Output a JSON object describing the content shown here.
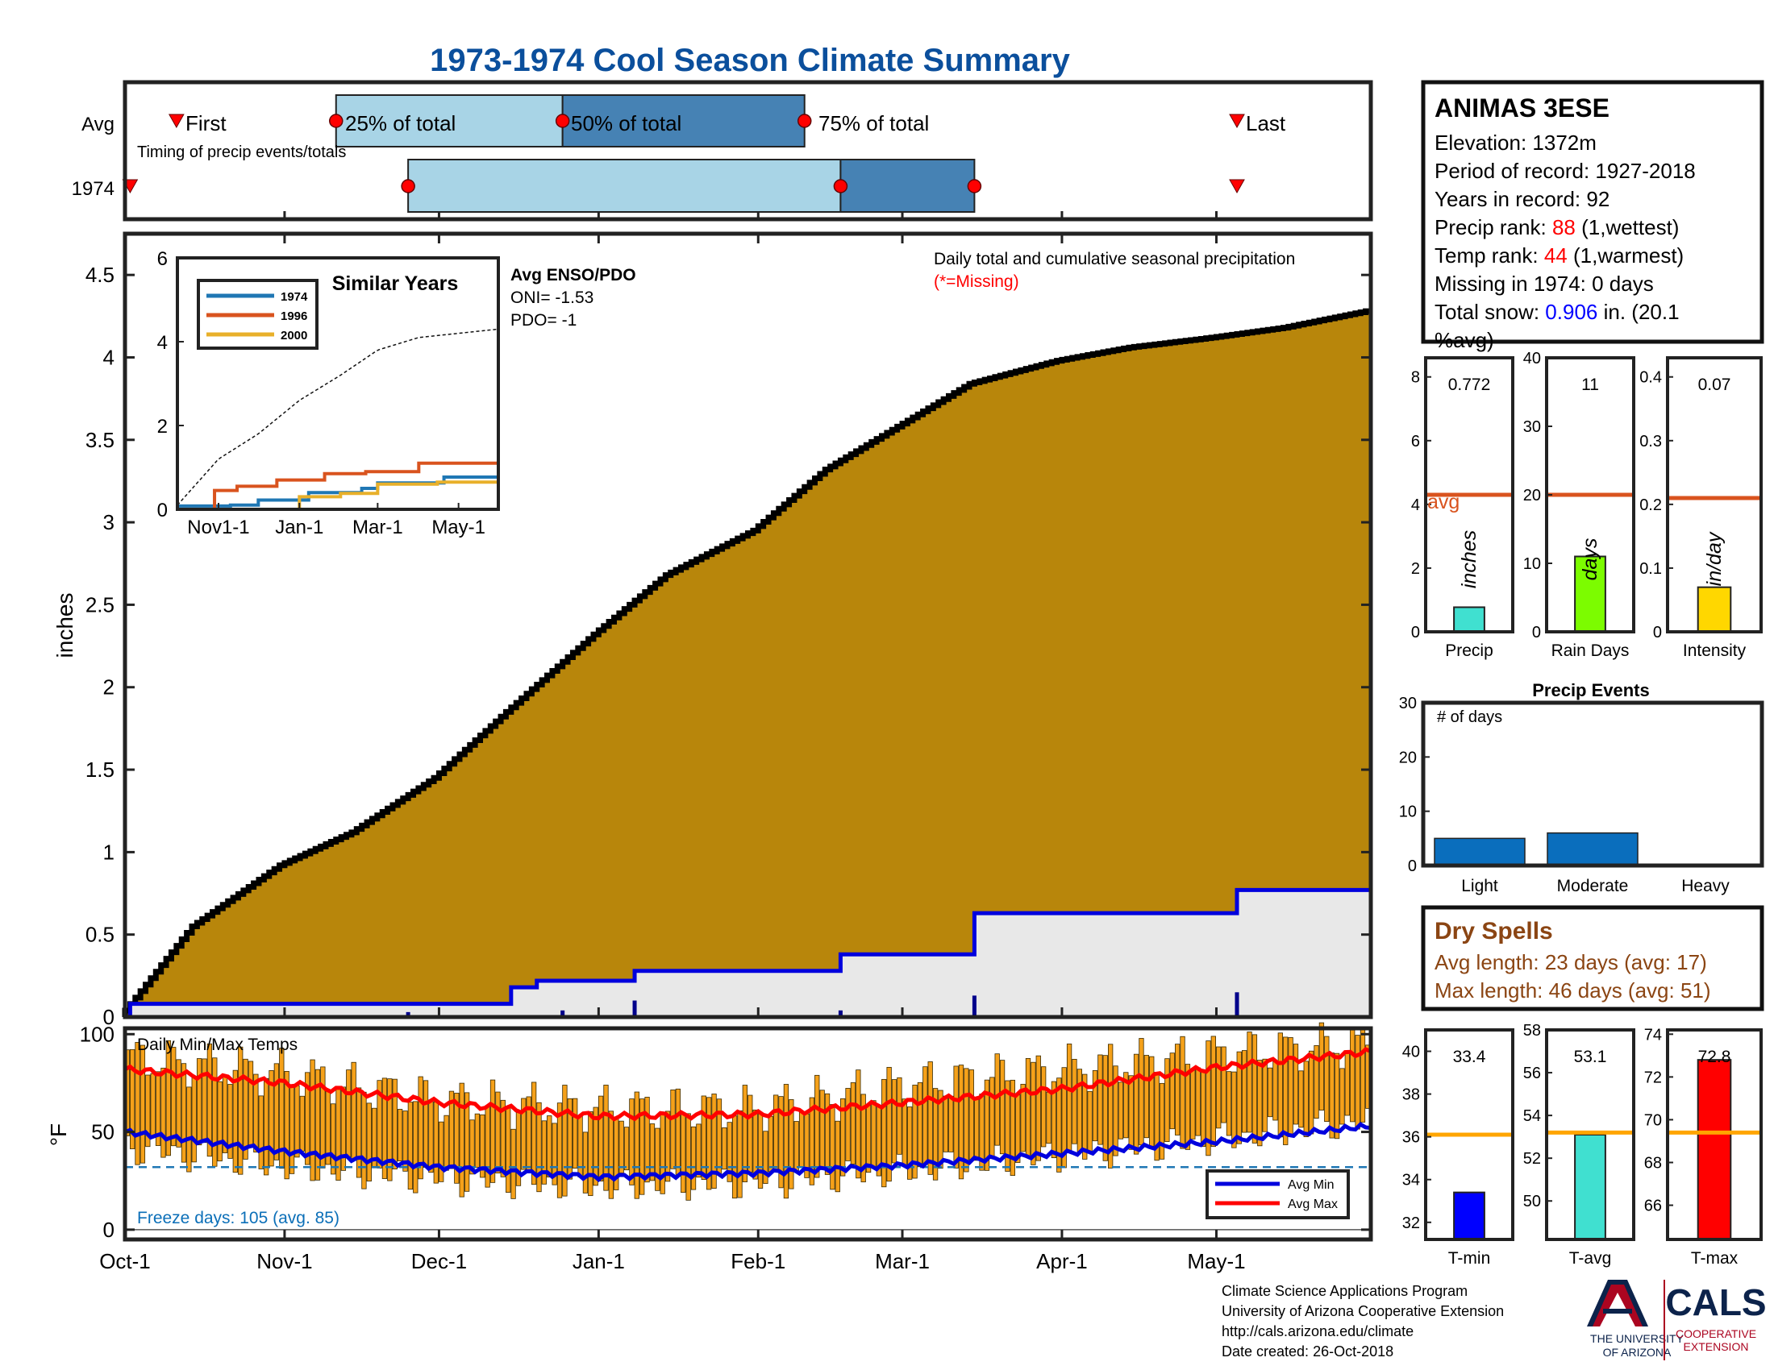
{
  "title": "1973-1974 Cool Season Climate Summary",
  "colors": {
    "title": "#0b4f9c",
    "cum_fill": "#b8860b",
    "cum_line": "#000000",
    "gray_fill": "#e8e8e8",
    "blue_line": "#0000dd",
    "light_blue": "#a8d4e6",
    "mid_blue": "#4682b4",
    "red": "#ff0000",
    "orange_avg": "#d9531e",
    "temp_bar": "#f5a11a",
    "freeze_text": "#0b6fb8",
    "dry_title": "#8b4513",
    "uofa_navy": "#0c234b",
    "uofa_red": "#ab0520"
  },
  "timing": {
    "row_labels": [
      "Avg",
      "1974"
    ],
    "subtitle": "Timing of precip events/totals",
    "markers": [
      "First",
      "25% of total",
      "50% of total",
      "75% of total",
      "Last"
    ]
  },
  "main": {
    "ylabel": "inches",
    "ticks": [
      "0",
      "0.5",
      "1",
      "1.5",
      "2",
      "2.5",
      "3",
      "3.5",
      "4",
      "4.5"
    ],
    "note1": "Daily total and cumulative seasonal precipitation",
    "note2": "(*=Missing)"
  },
  "month_ticks": [
    "Oct-1",
    "Nov-1",
    "Dec-1",
    "Jan-1",
    "Feb-1",
    "Mar-1",
    "Apr-1",
    "May-1"
  ],
  "inset": {
    "title": "Similar Years",
    "legend": [
      "1974",
      "1996",
      "2000"
    ],
    "legend_colors": [
      "#1f77b4",
      "#d9531e",
      "#e8b02a"
    ],
    "yticks": [
      "0",
      "2",
      "4",
      "6"
    ],
    "xticks": [
      "Nov1-1",
      "Jan-1",
      "Mar-1",
      "May-1"
    ]
  },
  "enso": {
    "title": "Avg ENSO/PDO",
    "oni": "ONI= -1.53",
    "pdo": "PDO= -1"
  },
  "temps": {
    "label": "Daily Min/Max Temps",
    "ylabel": "°F",
    "yticks": [
      "100",
      "50",
      "0"
    ],
    "freeze": "Freeze days: 105 (avg. 85)",
    "legend": [
      "Avg Min",
      "Avg Max"
    ]
  },
  "station": {
    "name": "ANIMAS 3ESE",
    "elevation": "Elevation: 1372m",
    "period": "Period of record: 1927-2018",
    "years": "Years in record: 92",
    "precip_rank_label": "Precip rank: ",
    "precip_rank_value": "88",
    "precip_rank_suffix": " (1,wettest)",
    "temp_rank_label": "Temp rank: ",
    "temp_rank_value": "44",
    "temp_rank_suffix": " (1,warmest)",
    "missing": "Missing in 1974: 0 days",
    "snow_label": "Total snow: ",
    "snow_value": "0.906",
    "snow_suffix": " in. (20.1",
    "snow_line2": "%avg)"
  },
  "summary_bars": [
    {
      "xlabel": "Precip",
      "value_text": "0.772",
      "unit": "inches",
      "yticks": [
        "0",
        "2",
        "4",
        "6",
        "8"
      ],
      "avg_label": "avg",
      "color": "#40e0d0"
    },
    {
      "xlabel": "Rain Days",
      "value_text": "11",
      "unit": "days",
      "yticks": [
        "0",
        "10",
        "20",
        "30",
        "40"
      ],
      "color": "#7cfc00"
    },
    {
      "xlabel": "Intensity",
      "value_text": "0.07",
      "unit": "in/day",
      "yticks": [
        "0",
        "0.1",
        "0.2",
        "0.3",
        "0.4"
      ],
      "color": "#ffd700"
    }
  ],
  "events": {
    "title": "Precip Events",
    "note": "# of days",
    "yticks": [
      "0",
      "10",
      "20",
      "30"
    ],
    "categories": [
      "Light",
      "Moderate",
      "Heavy"
    ]
  },
  "dry": {
    "title": "Dry Spells",
    "avg": "Avg length: 23 days (avg: 17)",
    "max": "Max length: 46 days (avg: 51)"
  },
  "temp_bars": [
    {
      "xlabel": "T-min",
      "value_text": "33.4",
      "yticks": [
        "32",
        "34",
        "36",
        "38",
        "40"
      ],
      "color": "#0000ff"
    },
    {
      "xlabel": "T-avg",
      "value_text": "53.1",
      "yticks": [
        "50",
        "52",
        "54",
        "56",
        "58"
      ],
      "color": "#40e0d0"
    },
    {
      "xlabel": "T-max",
      "value_text": "72.8",
      "yticks": [
        "66",
        "68",
        "70",
        "72",
        "74"
      ],
      "color": "#ff0000"
    }
  ],
  "footer": {
    "line1": "Climate Science Applications Program",
    "line2": "University of Arizona Cooperative Extension",
    "line3": "http://cals.arizona.edu/climate",
    "line4": " Date created: 26-Oct-2018",
    "uofa1": "THE UNIVERSITY",
    "uofa2": "OF ARIZONA",
    "cals": "CALS",
    "cals1": "COOPERATIVE",
    "cals2": "EXTENSION"
  },
  "chart_data": [
    {
      "type": "bar",
      "name": "timing",
      "categories": [
        "Avg",
        "1974"
      ],
      "series": [
        {
          "name": "First",
          "dates": [
            "1973-10-11",
            "1973-10-02"
          ]
        },
        {
          "name": "25% of total",
          "dates": [
            "1973-11-11",
            "1973-11-25"
          ]
        },
        {
          "name": "50% of total",
          "dates": [
            "1973-12-25",
            "1974-02-17"
          ]
        },
        {
          "name": "75% of total",
          "dates": [
            "1974-02-10",
            "1974-03-15"
          ]
        },
        {
          "name": "Last",
          "dates": [
            "1974-05-05",
            "1974-05-05"
          ]
        }
      ]
    },
    {
      "type": "area",
      "name": "daily total and cumulative seasonal precipitation",
      "xlabel": "",
      "ylabel": "inches",
      "ylim": [
        0,
        4.75
      ],
      "x_range": [
        "1973-10-01",
        "1974-05-31"
      ],
      "cumulative_avg": {
        "dates": [
          "1973-10-01",
          "1973-10-15",
          "1973-11-01",
          "1973-11-15",
          "1973-12-01",
          "1973-12-15",
          "1974-01-01",
          "1974-01-15",
          "1974-02-01",
          "1974-02-15",
          "1974-03-01",
          "1974-03-15",
          "1974-04-01",
          "1974-04-15",
          "1974-05-01",
          "1974-05-15",
          "1974-05-31"
        ],
        "values": [
          0.0,
          0.55,
          0.92,
          1.12,
          1.45,
          1.85,
          2.32,
          2.68,
          2.95,
          3.32,
          3.58,
          3.84,
          3.98,
          4.06,
          4.12,
          4.18,
          4.28
        ]
      },
      "cumulative_1974": {
        "dates": [
          "1973-10-01",
          "1973-10-02",
          "1973-11-11",
          "1973-11-18",
          "1973-12-15",
          "1973-12-20",
          "1974-01-01",
          "1974-01-08",
          "1974-02-17",
          "1974-02-19",
          "1974-03-15",
          "1974-05-05",
          "1974-05-31"
        ],
        "values": [
          0.0,
          0.08,
          0.08,
          0.08,
          0.18,
          0.22,
          0.22,
          0.28,
          0.38,
          0.38,
          0.63,
          0.77,
          0.77
        ]
      },
      "daily_1974": [
        {
          "date": "1973-11-25",
          "value": 0.03
        },
        {
          "date": "1973-12-25",
          "value": 0.04
        },
        {
          "date": "1974-01-08",
          "value": 0.1
        },
        {
          "date": "1974-02-17",
          "value": 0.04
        },
        {
          "date": "1974-03-15",
          "value": 0.13
        },
        {
          "date": "1974-05-05",
          "value": 0.15
        }
      ]
    },
    {
      "type": "line",
      "name": "Similar Years",
      "ylim": [
        0,
        6
      ],
      "x_range": [
        "1973-10-01",
        "1974-05-31"
      ],
      "series": [
        {
          "name": "1974",
          "dates": [
            "1973-10-01",
            "1973-11-10",
            "1973-12-01",
            "1974-01-08",
            "1974-02-17",
            "1974-03-01",
            "1974-04-01",
            "1974-04-20",
            "1974-05-31"
          ],
          "values": [
            0.08,
            0.1,
            0.22,
            0.4,
            0.5,
            0.63,
            0.63,
            0.77,
            0.77
          ]
        },
        {
          "name": "1996",
          "dates": [
            "1973-10-01",
            "1973-10-29",
            "1973-11-15",
            "1973-12-15",
            "1974-01-20",
            "1974-02-20",
            "1974-04-01",
            "1974-05-31"
          ],
          "values": [
            0,
            0.45,
            0.55,
            0.7,
            0.85,
            0.9,
            1.1,
            1.1
          ]
        },
        {
          "name": "2000",
          "dates": [
            "1973-10-01",
            "1973-12-15",
            "1974-01-01",
            "1974-02-01",
            "1974-03-01",
            "1974-04-15",
            "1974-05-31"
          ],
          "values": [
            0,
            0,
            0.3,
            0.38,
            0.6,
            0.65,
            0.7
          ]
        },
        {
          "name": "avg",
          "dates": [
            "1973-10-01",
            "1973-11-01",
            "1973-12-01",
            "1974-01-01",
            "1974-02-01",
            "1974-03-01",
            "1974-04-01",
            "1974-05-31"
          ],
          "values": [
            0.1,
            1.2,
            1.8,
            2.6,
            3.2,
            3.8,
            4.1,
            4.3
          ]
        }
      ]
    },
    {
      "type": "bar",
      "name": "Daily Min/Max Temps",
      "ylabel": "°F",
      "ylim": [
        -5,
        103
      ],
      "x_range": [
        "1973-10-01",
        "1974-05-31"
      ],
      "freeze_line": 32,
      "avg_max": {
        "dates": [
          "1973-10-01",
          "1973-11-01",
          "1973-12-01",
          "1974-01-01",
          "1974-02-01",
          "1974-03-01",
          "1974-04-01",
          "1974-05-01",
          "1974-05-31"
        ],
        "values": [
          82,
          75,
          65,
          58,
          59,
          65,
          72,
          83,
          91
        ]
      },
      "avg_min": {
        "dates": [
          "1973-10-01",
          "1973-11-01",
          "1973-12-01",
          "1974-01-01",
          "1974-02-01",
          "1974-03-01",
          "1974-04-01",
          "1974-05-01",
          "1974-05-31"
        ],
        "values": [
          50,
          40,
          32,
          27,
          29,
          33,
          39,
          45,
          53
        ]
      },
      "daily_max": {
        "dates": [
          "1973-10-01",
          "1973-11-01",
          "1973-12-01",
          "1974-01-01",
          "1974-02-01",
          "1974-03-01",
          "1974-04-01",
          "1974-05-01",
          "1974-05-31"
        ],
        "values": [
          88,
          80,
          66,
          62,
          62,
          74,
          82,
          90,
          95
        ]
      },
      "daily_min": {
        "dates": [
          "1973-10-01",
          "1973-11-01",
          "1973-12-01",
          "1974-01-01",
          "1974-02-01",
          "1974-03-01",
          "1974-04-01",
          "1974-05-01",
          "1974-05-31"
        ],
        "values": [
          42,
          32,
          26,
          22,
          24,
          30,
          38,
          46,
          56
        ]
      }
    },
    {
      "type": "bar",
      "name": "Precip",
      "categories": [
        "Precip"
      ],
      "values": [
        0.772
      ],
      "avg": 4.3,
      "ylim": [
        0,
        8.6
      ]
    },
    {
      "type": "bar",
      "name": "Rain Days",
      "categories": [
        "Rain Days"
      ],
      "values": [
        11
      ],
      "avg": 20,
      "ylim": [
        0,
        40
      ]
    },
    {
      "type": "bar",
      "name": "Intensity",
      "categories": [
        "Intensity"
      ],
      "values": [
        0.07
      ],
      "avg": 0.21,
      "ylim": [
        0,
        0.43
      ]
    },
    {
      "type": "bar",
      "name": "Precip Events",
      "categories": [
        "Light",
        "Moderate",
        "Heavy"
      ],
      "values": [
        5,
        6,
        0
      ],
      "ylim": [
        0,
        30
      ]
    },
    {
      "type": "bar",
      "name": "T-min",
      "categories": [
        "T-min"
      ],
      "values": [
        33.4
      ],
      "avg": 36.1,
      "ylim": [
        31.2,
        41
      ]
    },
    {
      "type": "bar",
      "name": "T-avg",
      "categories": [
        "T-avg"
      ],
      "values": [
        53.1
      ],
      "avg": 53.2,
      "ylim": [
        48.2,
        58
      ]
    },
    {
      "type": "bar",
      "name": "T-max",
      "categories": [
        "T-max"
      ],
      "values": [
        72.8
      ],
      "avg": 69.4,
      "ylim": [
        64.4,
        74.2
      ]
    }
  ]
}
